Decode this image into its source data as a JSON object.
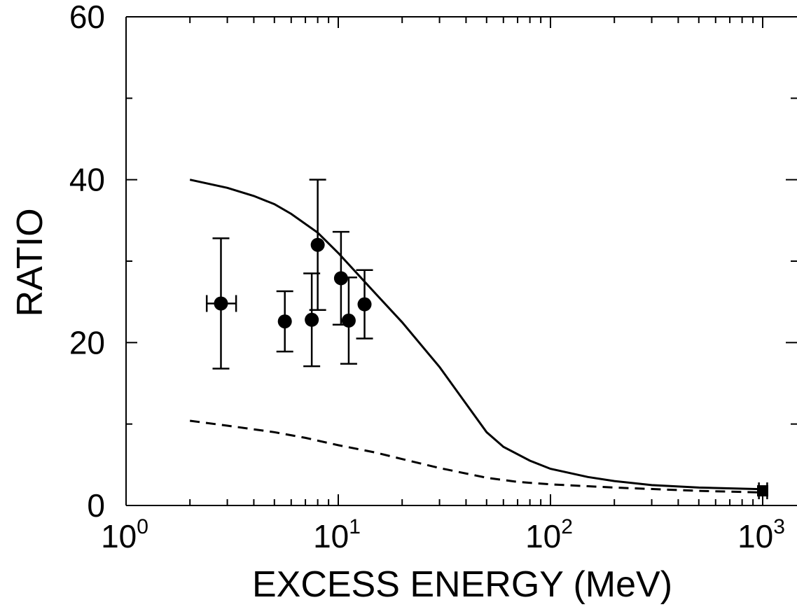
{
  "chart_data": {
    "type": "line",
    "title": "",
    "xlabel": "EXCESS ENERGY (MeV)",
    "ylabel": "RATIO",
    "xscale": "log",
    "xlim": [
      1,
      1500
    ],
    "ylim": [
      0,
      60
    ],
    "grid": false,
    "legend": "none",
    "x_ticks": [
      {
        "value": 1,
        "base": "10",
        "exp": "0"
      },
      {
        "value": 10,
        "base": "10",
        "exp": "1"
      },
      {
        "value": 100,
        "base": "10",
        "exp": "2"
      },
      {
        "value": 1000,
        "base": "10",
        "exp": "3"
      }
    ],
    "y_ticks": [
      {
        "value": 0,
        "label": "0"
      },
      {
        "value": 20,
        "label": "20"
      },
      {
        "value": 40,
        "label": "40"
      },
      {
        "value": 60,
        "label": "60"
      }
    ],
    "series": [
      {
        "style": "solid",
        "color": "#000000",
        "x": [
          2,
          3,
          4,
          5,
          6,
          8,
          10,
          15,
          20,
          30,
          40,
          50,
          60,
          80,
          100,
          150,
          200,
          300,
          500,
          1000
        ],
        "y": [
          40,
          39,
          38,
          37,
          35.8,
          33.5,
          31,
          26,
          22.5,
          17,
          12.5,
          9,
          7.2,
          5.5,
          4.5,
          3.5,
          3,
          2.5,
          2.2,
          2.0
        ]
      },
      {
        "style": "dashed",
        "color": "#000000",
        "x": [
          2,
          3,
          5,
          7,
          10,
          15,
          20,
          30,
          50,
          70,
          100,
          200,
          500,
          1000
        ],
        "y": [
          10.4,
          9.8,
          9.0,
          8.3,
          7.4,
          6.5,
          5.7,
          4.6,
          3.4,
          2.9,
          2.6,
          2.2,
          1.8,
          1.6
        ]
      }
    ],
    "points": [
      {
        "marker": "circle",
        "x": 2.8,
        "y": 24.8,
        "yerr_low": 16.8,
        "yerr_high": 32.8,
        "xerr_low": 2.4,
        "xerr_high": 3.3
      },
      {
        "marker": "circle",
        "x": 5.6,
        "y": 22.6,
        "yerr_low": 18.9,
        "yerr_high": 26.3
      },
      {
        "marker": "circle",
        "x": 7.5,
        "y": 22.8,
        "yerr_low": 17.1,
        "yerr_high": 28.5
      },
      {
        "marker": "circle",
        "x": 8.0,
        "y": 32.0,
        "yerr_low": 24.0,
        "yerr_high": 40.0
      },
      {
        "marker": "circle",
        "x": 10.3,
        "y": 27.9,
        "yerr_low": 22.2,
        "yerr_high": 33.6
      },
      {
        "marker": "circle",
        "x": 11.2,
        "y": 22.7,
        "yerr_low": 17.4,
        "yerr_high": 28.0
      },
      {
        "marker": "circle",
        "x": 13.3,
        "y": 24.7,
        "yerr_low": 20.5,
        "yerr_high": 28.9
      },
      {
        "marker": "square",
        "x": 1000,
        "y": 1.8,
        "xerr_low": 960,
        "xerr_high": 1050
      }
    ]
  }
}
